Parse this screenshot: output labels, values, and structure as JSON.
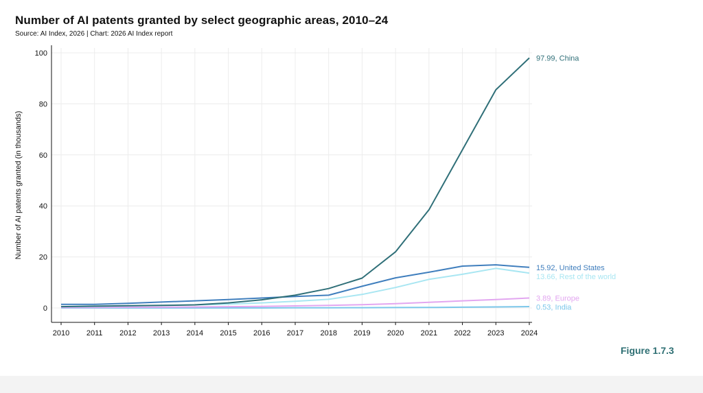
{
  "header": {
    "title": "Number of AI patents granted by select geographic areas, 2010–24",
    "subtitle": "Source: AI Index, 2026 | Chart: 2026 AI Index report"
  },
  "footer": {
    "figure_label": "Figure 1.7.3"
  },
  "chart_data": {
    "type": "line",
    "title": "Number of AI patents granted by select geographic areas, 2010–24",
    "subtitle": "Source: AI Index, 2026 | Chart: 2026 AI Index report",
    "xlabel": "",
    "ylabel": "Number of AI patents granted (in thousands)",
    "ylim": [
      0,
      100
    ],
    "yticks": [
      0,
      20,
      40,
      60,
      80,
      100
    ],
    "grid": true,
    "legend": "end-of-line labels",
    "x": [
      2010,
      2011,
      2012,
      2013,
      2014,
      2015,
      2016,
      2017,
      2018,
      2019,
      2020,
      2021,
      2022,
      2023,
      2024
    ],
    "series": [
      {
        "name": "China",
        "color": "#2f6f78",
        "end_label": "97.99, China",
        "values": [
          0.5,
          0.7,
          0.9,
          1.0,
          1.2,
          2.0,
          3.2,
          5.0,
          7.6,
          11.7,
          22.0,
          38.5,
          62.0,
          85.5,
          97.99
        ]
      },
      {
        "name": "United States",
        "color": "#3f7ebd",
        "end_label": "15.92, United States",
        "values": [
          1.4,
          1.4,
          1.8,
          2.3,
          2.8,
          3.3,
          3.9,
          4.5,
          5.0,
          8.5,
          11.8,
          14.0,
          16.4,
          16.9,
          15.92
        ]
      },
      {
        "name": "Rest of the world",
        "color": "#a8e6f2",
        "end_label": "13.66, Rest of the world",
        "values": [
          0.5,
          0.6,
          0.8,
          1.0,
          1.2,
          1.5,
          2.0,
          2.6,
          3.4,
          5.3,
          8.0,
          11.2,
          13.2,
          15.5,
          13.66
        ]
      },
      {
        "name": "Europe",
        "color": "#e2a6f0",
        "end_label": "3.89, Europe",
        "values": [
          0.2,
          0.2,
          0.3,
          0.3,
          0.4,
          0.5,
          0.6,
          0.8,
          1.0,
          1.3,
          1.7,
          2.2,
          2.8,
          3.3,
          3.89
        ]
      },
      {
        "name": "India",
        "color": "#7cc7ea",
        "end_label": "0.53, India",
        "values": [
          0.0,
          0.0,
          0.0,
          0.0,
          0.0,
          0.0,
          0.0,
          0.05,
          0.05,
          0.1,
          0.15,
          0.2,
          0.3,
          0.4,
          0.53
        ]
      }
    ]
  }
}
